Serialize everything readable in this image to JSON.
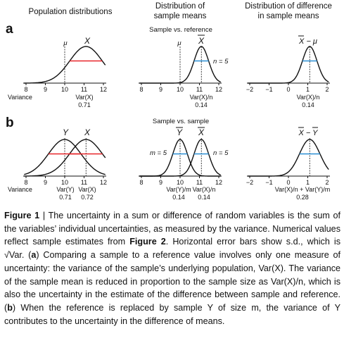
{
  "figure": {
    "col_headers": {
      "c1": "Population distributions",
      "c2_line1": "Distribution of",
      "c2_line2": "sample means",
      "c3_line1": "Distribution of difference",
      "c3_line2": "in sample means"
    },
    "panel_a": {
      "letter": "a",
      "subtitle": "Sample vs. reference",
      "c1": {
        "mu_label": "μ",
        "x_label": "X",
        "ticks": [
          "8",
          "9",
          "10",
          "11",
          "12"
        ],
        "axis_label": "Variance",
        "var_label": "Var(X)",
        "var_value": "0.71"
      },
      "c2": {
        "mu_label": "μ",
        "xbar_label": "X",
        "n_label": "n = 5",
        "ticks": [
          "8",
          "9",
          "10",
          "11",
          "12"
        ],
        "var_label": "Var(X)/n",
        "var_value": "0.14"
      },
      "c3": {
        "diff_label": "X − μ",
        "ticks": [
          "−2",
          "−1",
          "0",
          "1",
          "2"
        ],
        "var_label": "Var(X)/n",
        "var_value": "0.14"
      }
    },
    "panel_b": {
      "letter": "b",
      "subtitle": "Sample vs. sample",
      "c1": {
        "y_label": "Y",
        "x_label": "X",
        "ticks": [
          "8",
          "9",
          "10",
          "11",
          "12"
        ],
        "axis_label": "Variance",
        "var_y_label": "Var(Y)",
        "var_x_label": "Var(X)",
        "var_y_value": "0.71",
        "var_x_value": "0.72"
      },
      "c2": {
        "ybar_label": "Y",
        "xbar_label": "X",
        "m_label": "m = 5",
        "n_label": "n = 5",
        "ticks": [
          "8",
          "9",
          "10",
          "11",
          "12"
        ],
        "var_y_label": "Var(Y)/m",
        "var_x_label": "Var(X)/n",
        "var_y_value": "0.14",
        "var_x_value": "0.14"
      },
      "c3": {
        "diff_label": "X − Y",
        "ticks": [
          "−2",
          "−1",
          "0",
          "1",
          "2"
        ],
        "var_label": "Var(X)/n + Var(Y)/m",
        "var_value": "0.28"
      }
    },
    "colors": {
      "population_sd_bar": "#e8262a",
      "sample_sd_bar": "#2a8fd4",
      "curve": "#111111"
    }
  },
  "caption": {
    "fig_label": "Figure 1",
    "sep": " | ",
    "t1": "The uncertainty in a sum or difference of random variables is the sum of the variables’ individual uncertainties, as measured by the variance. Numerical values reflect sample estimates from ",
    "fig2_ref": "Figure 2",
    "t2": ". Horizontal error bars show s.d., which is √Var. (",
    "a_ref": "a",
    "t3": ") Comparing a sample to a reference value involves only one measure of uncertainty: the variance of the sample’s underlying population, Var(X). The variance of the sample mean is reduced in proportion to the sample size as Var(X)/n, which is also the uncertainty in the estimate of the difference between sample and reference. (",
    "b_ref": "b",
    "t4": ") When the reference is replaced by sample Y of size m, the variance of Y contributes to the uncertainty in the difference of means."
  }
}
